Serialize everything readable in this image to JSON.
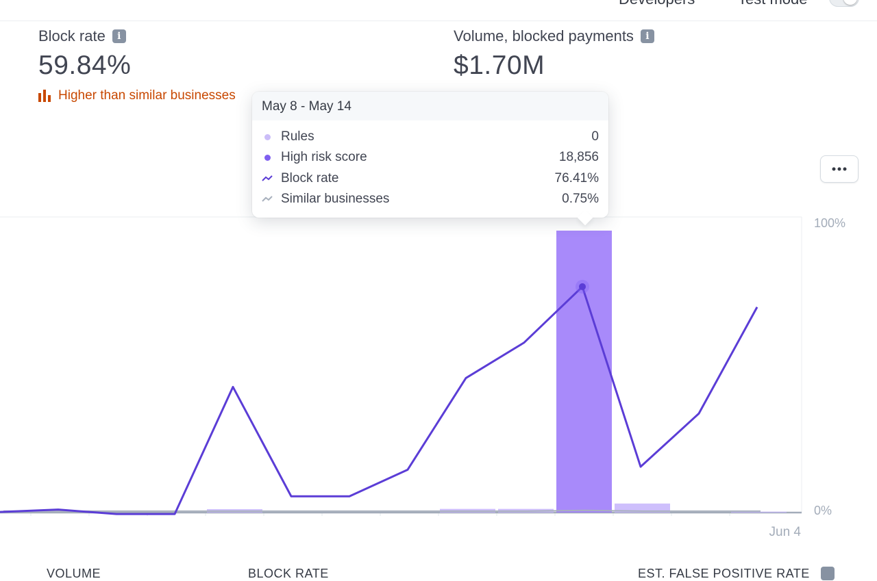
{
  "topbar": {
    "developers": "Developers",
    "test_mode": "Test mode"
  },
  "metrics": {
    "block_rate": {
      "label": "Block rate",
      "value": "59.84%",
      "compare": "Higher than similar businesses"
    },
    "volume_blocked": {
      "label": "Volume, blocked payments",
      "value": "$1.70M"
    }
  },
  "chart_data": {
    "type": "bar",
    "y_axis_labels": [
      "100%",
      "0%"
    ],
    "x_axis_labels": [
      "Jun 4"
    ],
    "grid": true,
    "bars_volume_relative": [
      0,
      0,
      0,
      0,
      0.012,
      0,
      0,
      0,
      0.013,
      0.013,
      1.0,
      0.032,
      0,
      0.003
    ],
    "series": [
      {
        "name": "Block rate",
        "values": [
          0.2,
          1.0,
          -0.5,
          -0.5,
          42.5,
          5.5,
          5.5,
          14.5,
          45.5,
          57.5,
          76.41,
          15.5,
          33.5,
          69.5
        ]
      },
      {
        "name": "Similar businesses",
        "values": [
          0.5,
          0.5,
          0.5,
          0.5,
          0.5,
          0.5,
          0.5,
          0.5,
          0.5,
          0.5,
          0.75,
          0.5,
          0.5,
          0.5
        ]
      }
    ],
    "highlight_index": 10,
    "colors": {
      "high_risk": "#9f7dfa",
      "rules": "#c6b4fb",
      "block_rate": "#5b3dd6",
      "similar": "#a8b0bd"
    }
  },
  "tooltip": {
    "title": "May 8 - May 14",
    "rows": [
      {
        "name": "Rules",
        "value": "0",
        "marker": "dot",
        "color": "#c9b8fb"
      },
      {
        "name": "High risk score",
        "value": "18,856",
        "marker": "dot",
        "color": "#7f5ff0"
      },
      {
        "name": "Block rate",
        "value": "76.41%",
        "marker": "line",
        "color": "#5b3dd6"
      },
      {
        "name": "Similar businesses",
        "value": "0.75%",
        "marker": "line",
        "color": "#a8b0bd"
      }
    ]
  },
  "bottom": {
    "volume": "VOLUME",
    "block_rate": "BLOCK RATE",
    "false_positive": "EST. FALSE POSITIVE RATE"
  }
}
